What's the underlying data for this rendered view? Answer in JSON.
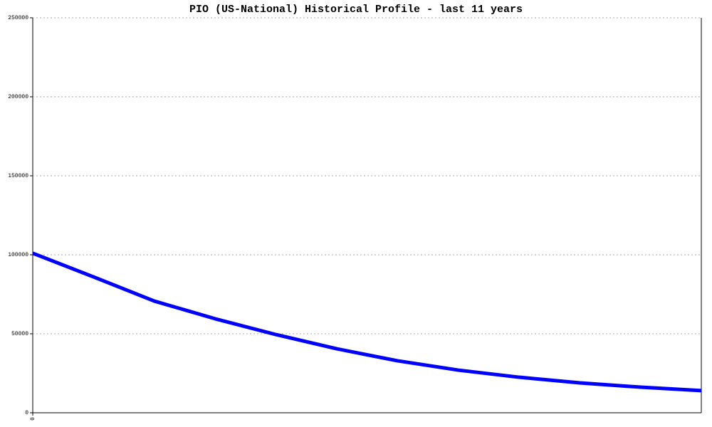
{
  "chart_data": {
    "type": "line",
    "title": "PIO (US-National) Historical Profile - last 11 years",
    "categories": [
      "0",
      null,
      null,
      null,
      null,
      null,
      null,
      null,
      null,
      null,
      null,
      null
    ],
    "values": [
      101000,
      86000,
      70700,
      59500,
      49500,
      40500,
      32900,
      27000,
      22500,
      18900,
      16200,
      14000
    ],
    "color": "#0000ff",
    "ylim": [
      0,
      250000
    ],
    "yticks": [
      0,
      50000,
      100000,
      150000,
      200000,
      250000
    ],
    "grid": true
  }
}
